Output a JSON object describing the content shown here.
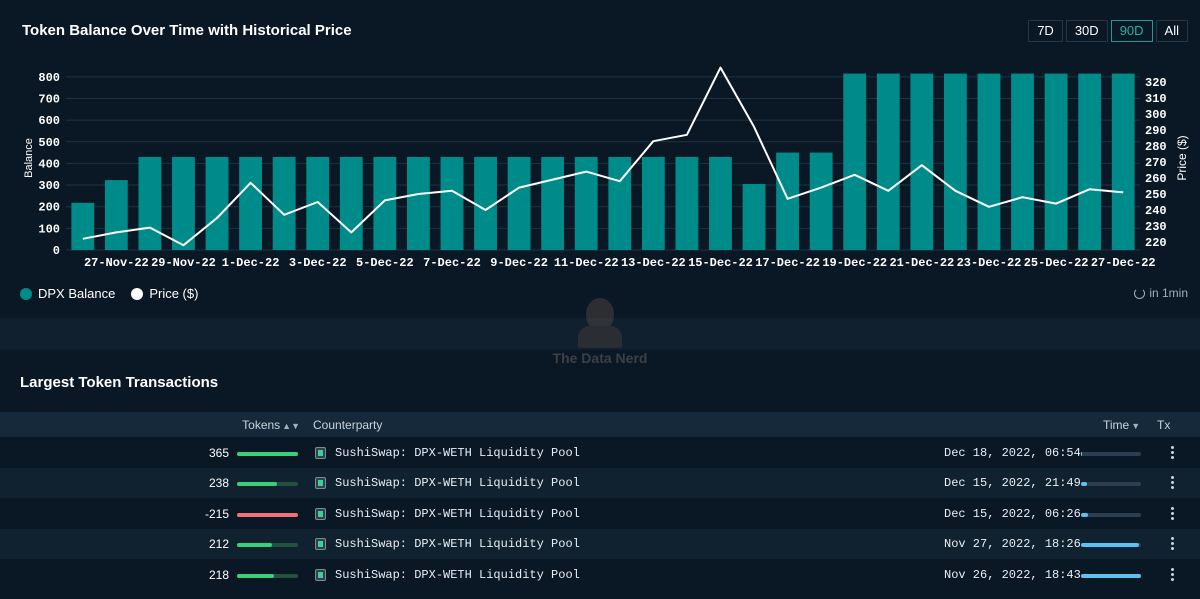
{
  "chart_title": "Token Balance Over Time with Historical Price",
  "range_buttons": [
    {
      "label": "7D",
      "active": false
    },
    {
      "label": "30D",
      "active": false
    },
    {
      "label": "90D",
      "active": true
    },
    {
      "label": "All",
      "active": false
    }
  ],
  "legend": {
    "balance": "DPX Balance",
    "price": "Price ($)"
  },
  "refresh_text": "in 1min",
  "watermark_text": "The Data Nerd",
  "colors": {
    "balance_bar": "#008b8b",
    "price_line": "#ffffff",
    "positive_bar": "#3ccf7a",
    "negative_bar": "#f07272",
    "time_bar": "#5ec1f0"
  },
  "chart_data": {
    "type": "bar",
    "title": "Token Balance Over Time with Historical Price",
    "ylabel": "Balance",
    "y2label": "Price ($)",
    "ylim": [
      0,
      850
    ],
    "y2lim": [
      215,
      330
    ],
    "yticks": [
      0,
      100,
      200,
      300,
      400,
      500,
      600,
      700,
      800
    ],
    "y2ticks": [
      220,
      230,
      240,
      250,
      260,
      270,
      280,
      290,
      300,
      310,
      320
    ],
    "xtick_labels": [
      "27-Nov-22",
      "29-Nov-22",
      "1-Dec-22",
      "3-Dec-22",
      "5-Dec-22",
      "7-Dec-22",
      "9-Dec-22",
      "11-Dec-22",
      "13-Dec-22",
      "15-Dec-22",
      "17-Dec-22",
      "19-Dec-22",
      "21-Dec-22",
      "23-Dec-22",
      "25-Dec-22",
      "27-Dec-22"
    ],
    "categories": [
      "26-Nov-22",
      "27-Nov-22",
      "28-Nov-22",
      "29-Nov-22",
      "30-Nov-22",
      "1-Dec-22",
      "2-Dec-22",
      "3-Dec-22",
      "4-Dec-22",
      "5-Dec-22",
      "6-Dec-22",
      "7-Dec-22",
      "8-Dec-22",
      "9-Dec-22",
      "10-Dec-22",
      "11-Dec-22",
      "12-Dec-22",
      "13-Dec-22",
      "14-Dec-22",
      "15-Dec-22",
      "16-Dec-22",
      "17-Dec-22",
      "18-Dec-22",
      "19-Dec-22",
      "20-Dec-22",
      "21-Dec-22",
      "22-Dec-22",
      "23-Dec-22",
      "24-Dec-22",
      "25-Dec-22",
      "26-Dec-22",
      "27-Dec-22"
    ],
    "series": [
      {
        "name": "DPX Balance",
        "type": "bar",
        "axis": "left",
        "values": [
          218,
          323,
          430,
          430,
          430,
          430,
          430,
          430,
          430,
          430,
          430,
          430,
          430,
          430,
          430,
          430,
          430,
          430,
          430,
          430,
          305,
          450,
          450,
          815,
          815,
          815,
          815,
          815,
          815,
          815,
          815,
          815
        ]
      },
      {
        "name": "Price ($)",
        "type": "line",
        "axis": "right",
        "values": [
          222,
          226,
          229,
          218,
          235,
          257,
          237,
          245,
          226,
          246,
          250,
          252,
          240,
          254,
          259,
          264,
          258,
          283,
          287,
          329,
          292,
          247,
          254,
          262,
          252,
          268,
          252,
          242,
          248,
          244,
          253,
          251
        ]
      }
    ],
    "grid": true,
    "legend_position": "bottom-left"
  },
  "transactions": {
    "title": "Largest Token Transactions",
    "headers": {
      "tokens": "Tokens",
      "counterparty": "Counterparty",
      "time": "Time",
      "tx": "Tx"
    },
    "rows": [
      {
        "amount": "365",
        "magnitude": 1.0,
        "sign": "positive",
        "counterparty": "SushiSwap: DPX-WETH Liquidity Pool",
        "time": "Dec 18, 2022, 06:54",
        "recency": 0.02
      },
      {
        "amount": "238",
        "magnitude": 0.65,
        "sign": "positive",
        "counterparty": "SushiSwap: DPX-WETH Liquidity Pool",
        "time": "Dec 15, 2022, 21:49",
        "recency": 0.1
      },
      {
        "amount": "-215",
        "magnitude": 1.0,
        "sign": "negative",
        "counterparty": "SushiSwap: DPX-WETH Liquidity Pool",
        "time": "Dec 15, 2022, 06:26",
        "recency": 0.12
      },
      {
        "amount": "212",
        "magnitude": 0.58,
        "sign": "positive",
        "counterparty": "SushiSwap: DPX-WETH Liquidity Pool",
        "time": "Nov 27, 2022, 18:26",
        "recency": 0.97
      },
      {
        "amount": "218",
        "magnitude": 0.6,
        "sign": "positive",
        "counterparty": "SushiSwap: DPX-WETH Liquidity Pool",
        "time": "Nov 26, 2022, 18:43",
        "recency": 1.0
      }
    ]
  }
}
